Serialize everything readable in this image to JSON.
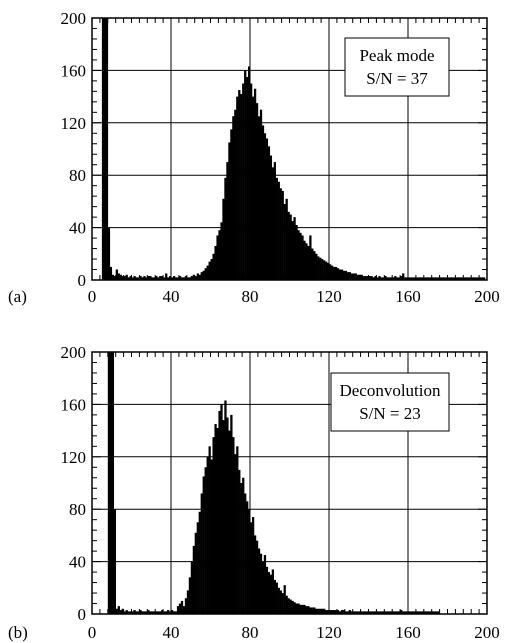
{
  "chart_data": [
    {
      "type": "bar",
      "panel_label": "(a)",
      "annotation": [
        "Peak mode",
        "S/N = 37"
      ],
      "xlim": [
        0,
        200
      ],
      "ylim": [
        0,
        200
      ],
      "xticks": [
        0,
        40,
        80,
        120,
        160,
        200
      ],
      "yticks": [
        0,
        40,
        80,
        120,
        160,
        200
      ],
      "grid": true,
      "bin_width": 1,
      "series": [
        {
          "x": [
            5,
            6,
            7,
            8,
            9,
            10,
            11,
            12,
            13,
            14,
            15,
            16,
            17,
            18,
            19,
            20,
            21,
            22,
            23,
            24,
            25,
            26,
            27,
            28,
            29,
            30,
            31,
            32,
            33,
            34,
            35,
            36,
            37,
            38,
            39,
            40,
            41,
            42,
            43,
            44,
            45,
            46,
            47,
            48,
            49,
            50,
            51,
            52,
            53,
            54,
            55,
            56,
            57,
            58,
            59,
            60,
            61,
            62,
            63,
            64,
            65,
            66,
            67,
            68,
            69,
            70,
            71,
            72,
            73,
            74,
            75,
            76,
            77,
            78,
            79,
            80,
            81,
            82,
            83,
            84,
            85,
            86,
            87,
            88,
            89,
            90,
            91,
            92,
            93,
            94,
            95,
            96,
            97,
            98,
            99,
            100,
            101,
            102,
            103,
            104,
            105,
            106,
            107,
            108,
            109,
            110,
            111,
            112,
            113,
            114,
            115,
            116,
            117,
            118,
            119,
            120,
            121,
            122,
            123,
            124,
            125,
            126,
            127,
            128,
            129,
            130,
            131,
            132,
            133,
            134,
            135,
            136,
            137,
            138,
            139,
            140,
            141,
            142,
            143,
            144,
            145,
            146,
            147,
            148,
            149,
            150,
            151,
            152,
            153,
            154,
            155,
            156,
            157,
            158,
            159,
            160,
            161,
            162,
            163,
            164,
            165,
            166,
            167,
            168,
            169,
            170,
            171,
            172,
            173,
            174,
            175,
            176,
            177,
            178,
            179,
            180,
            181,
            182,
            183,
            184,
            185,
            186,
            187,
            188,
            189,
            190,
            191,
            192,
            193,
            194,
            195,
            196,
            197,
            198
          ],
          "values": [
            200,
            200,
            200,
            40,
            10,
            4,
            3,
            8,
            5,
            4,
            3,
            3,
            4,
            2,
            3,
            2,
            3,
            2,
            2,
            3,
            2,
            3,
            2,
            3,
            3,
            2,
            2,
            3,
            2,
            3,
            3,
            2,
            5,
            2,
            3,
            2,
            3,
            2,
            2,
            3,
            2,
            2,
            3,
            2,
            2,
            3,
            4,
            3,
            5,
            4,
            6,
            7,
            9,
            11,
            14,
            16,
            20,
            26,
            34,
            38,
            44,
            62,
            78,
            90,
            105,
            115,
            125,
            130,
            140,
            145,
            142,
            150,
            160,
            155,
            163,
            150,
            140,
            146,
            135,
            125,
            130,
            118,
            112,
            108,
            102,
            95,
            86,
            90,
            78,
            75,
            70,
            68,
            58,
            62,
            52,
            50,
            45,
            48,
            42,
            38,
            36,
            34,
            30,
            28,
            26,
            34,
            24,
            22,
            20,
            18,
            17,
            16,
            15,
            14,
            13,
            12,
            11,
            10,
            10,
            9,
            8,
            8,
            7,
            7,
            6,
            6,
            5,
            5,
            5,
            4,
            4,
            4,
            3,
            3,
            3,
            3,
            3,
            2,
            3,
            2,
            3,
            2,
            2,
            3,
            2,
            2,
            2,
            2,
            3,
            2,
            2,
            3,
            5,
            2,
            2,
            2,
            2,
            2,
            2,
            2,
            2,
            2,
            2,
            2,
            2,
            2,
            2,
            2,
            2,
            2,
            2,
            2,
            2,
            2,
            2,
            2,
            2,
            2,
            2,
            2,
            2,
            2,
            2,
            2,
            2,
            2,
            2,
            2,
            2,
            2,
            2,
            2,
            2,
            2
          ]
        }
      ]
    },
    {
      "type": "bar",
      "panel_label": "(b)",
      "annotation": [
        "Deconvolution",
        "S/N = 23"
      ],
      "xlim": [
        0,
        200
      ],
      "ylim": [
        0,
        200
      ],
      "xticks": [
        0,
        40,
        80,
        120,
        160,
        200
      ],
      "yticks": [
        0,
        40,
        80,
        120,
        160,
        200
      ],
      "grid": true,
      "bin_width": 1,
      "series": [
        {
          "x": [
            8,
            9,
            10,
            11,
            12,
            13,
            14,
            15,
            16,
            17,
            18,
            19,
            20,
            21,
            22,
            23,
            24,
            25,
            26,
            27,
            28,
            29,
            30,
            31,
            32,
            33,
            34,
            35,
            36,
            37,
            38,
            39,
            40,
            41,
            42,
            43,
            44,
            45,
            46,
            47,
            48,
            49,
            50,
            51,
            52,
            53,
            54,
            55,
            56,
            57,
            58,
            59,
            60,
            61,
            62,
            63,
            64,
            65,
            66,
            67,
            68,
            69,
            70,
            71,
            72,
            73,
            74,
            75,
            76,
            77,
            78,
            79,
            80,
            81,
            82,
            83,
            84,
            85,
            86,
            87,
            88,
            89,
            90,
            91,
            92,
            93,
            94,
            95,
            96,
            97,
            98,
            99,
            100,
            101,
            102,
            103,
            104,
            105,
            106,
            107,
            108,
            109,
            110,
            111,
            112,
            113,
            114,
            115,
            116,
            117,
            118,
            119,
            120,
            121,
            122,
            123,
            124,
            125,
            126,
            127,
            128,
            129,
            130,
            131,
            132,
            133,
            134,
            135,
            136,
            137,
            138,
            139,
            140,
            141,
            142,
            143,
            144,
            145,
            146,
            147,
            148,
            149,
            150,
            151,
            152,
            153,
            154,
            155,
            156,
            157,
            158,
            159,
            160,
            161,
            162,
            163,
            164,
            165,
            166,
            167,
            168,
            169,
            170,
            171,
            172,
            173,
            174,
            175
          ],
          "values": [
            200,
            200,
            200,
            80,
            4,
            6,
            3,
            4,
            2,
            3,
            2,
            2,
            2,
            3,
            2,
            2,
            3,
            2,
            2,
            2,
            3,
            2,
            2,
            2,
            2,
            2,
            2,
            3,
            2,
            2,
            3,
            2,
            3,
            2,
            2,
            6,
            8,
            10,
            6,
            12,
            18,
            28,
            40,
            52,
            62,
            70,
            78,
            92,
            105,
            112,
            120,
            128,
            118,
            135,
            145,
            142,
            155,
            160,
            148,
            163,
            150,
            140,
            152,
            135,
            122,
            128,
            110,
            100,
            104,
            92,
            86,
            80,
            70,
            74,
            60,
            56,
            50,
            46,
            40,
            45,
            36,
            32,
            30,
            34,
            26,
            24,
            20,
            18,
            16,
            22,
            14,
            12,
            11,
            10,
            9,
            8,
            8,
            7,
            7,
            7,
            6,
            6,
            5,
            5,
            5,
            4,
            4,
            4,
            4,
            4,
            3,
            3,
            3,
            3,
            3,
            3,
            3,
            2,
            3,
            3,
            2,
            2,
            3,
            2,
            2,
            2,
            2,
            2,
            2,
            2,
            2,
            2,
            2,
            2,
            2,
            2,
            2,
            2,
            2,
            2,
            2,
            2,
            2,
            2,
            2,
            2,
            2,
            2,
            3,
            2,
            2,
            2,
            2,
            2,
            2,
            2,
            2,
            2,
            2,
            2,
            2,
            2,
            2,
            2,
            2,
            2,
            2,
            2
          ]
        }
      ]
    }
  ]
}
